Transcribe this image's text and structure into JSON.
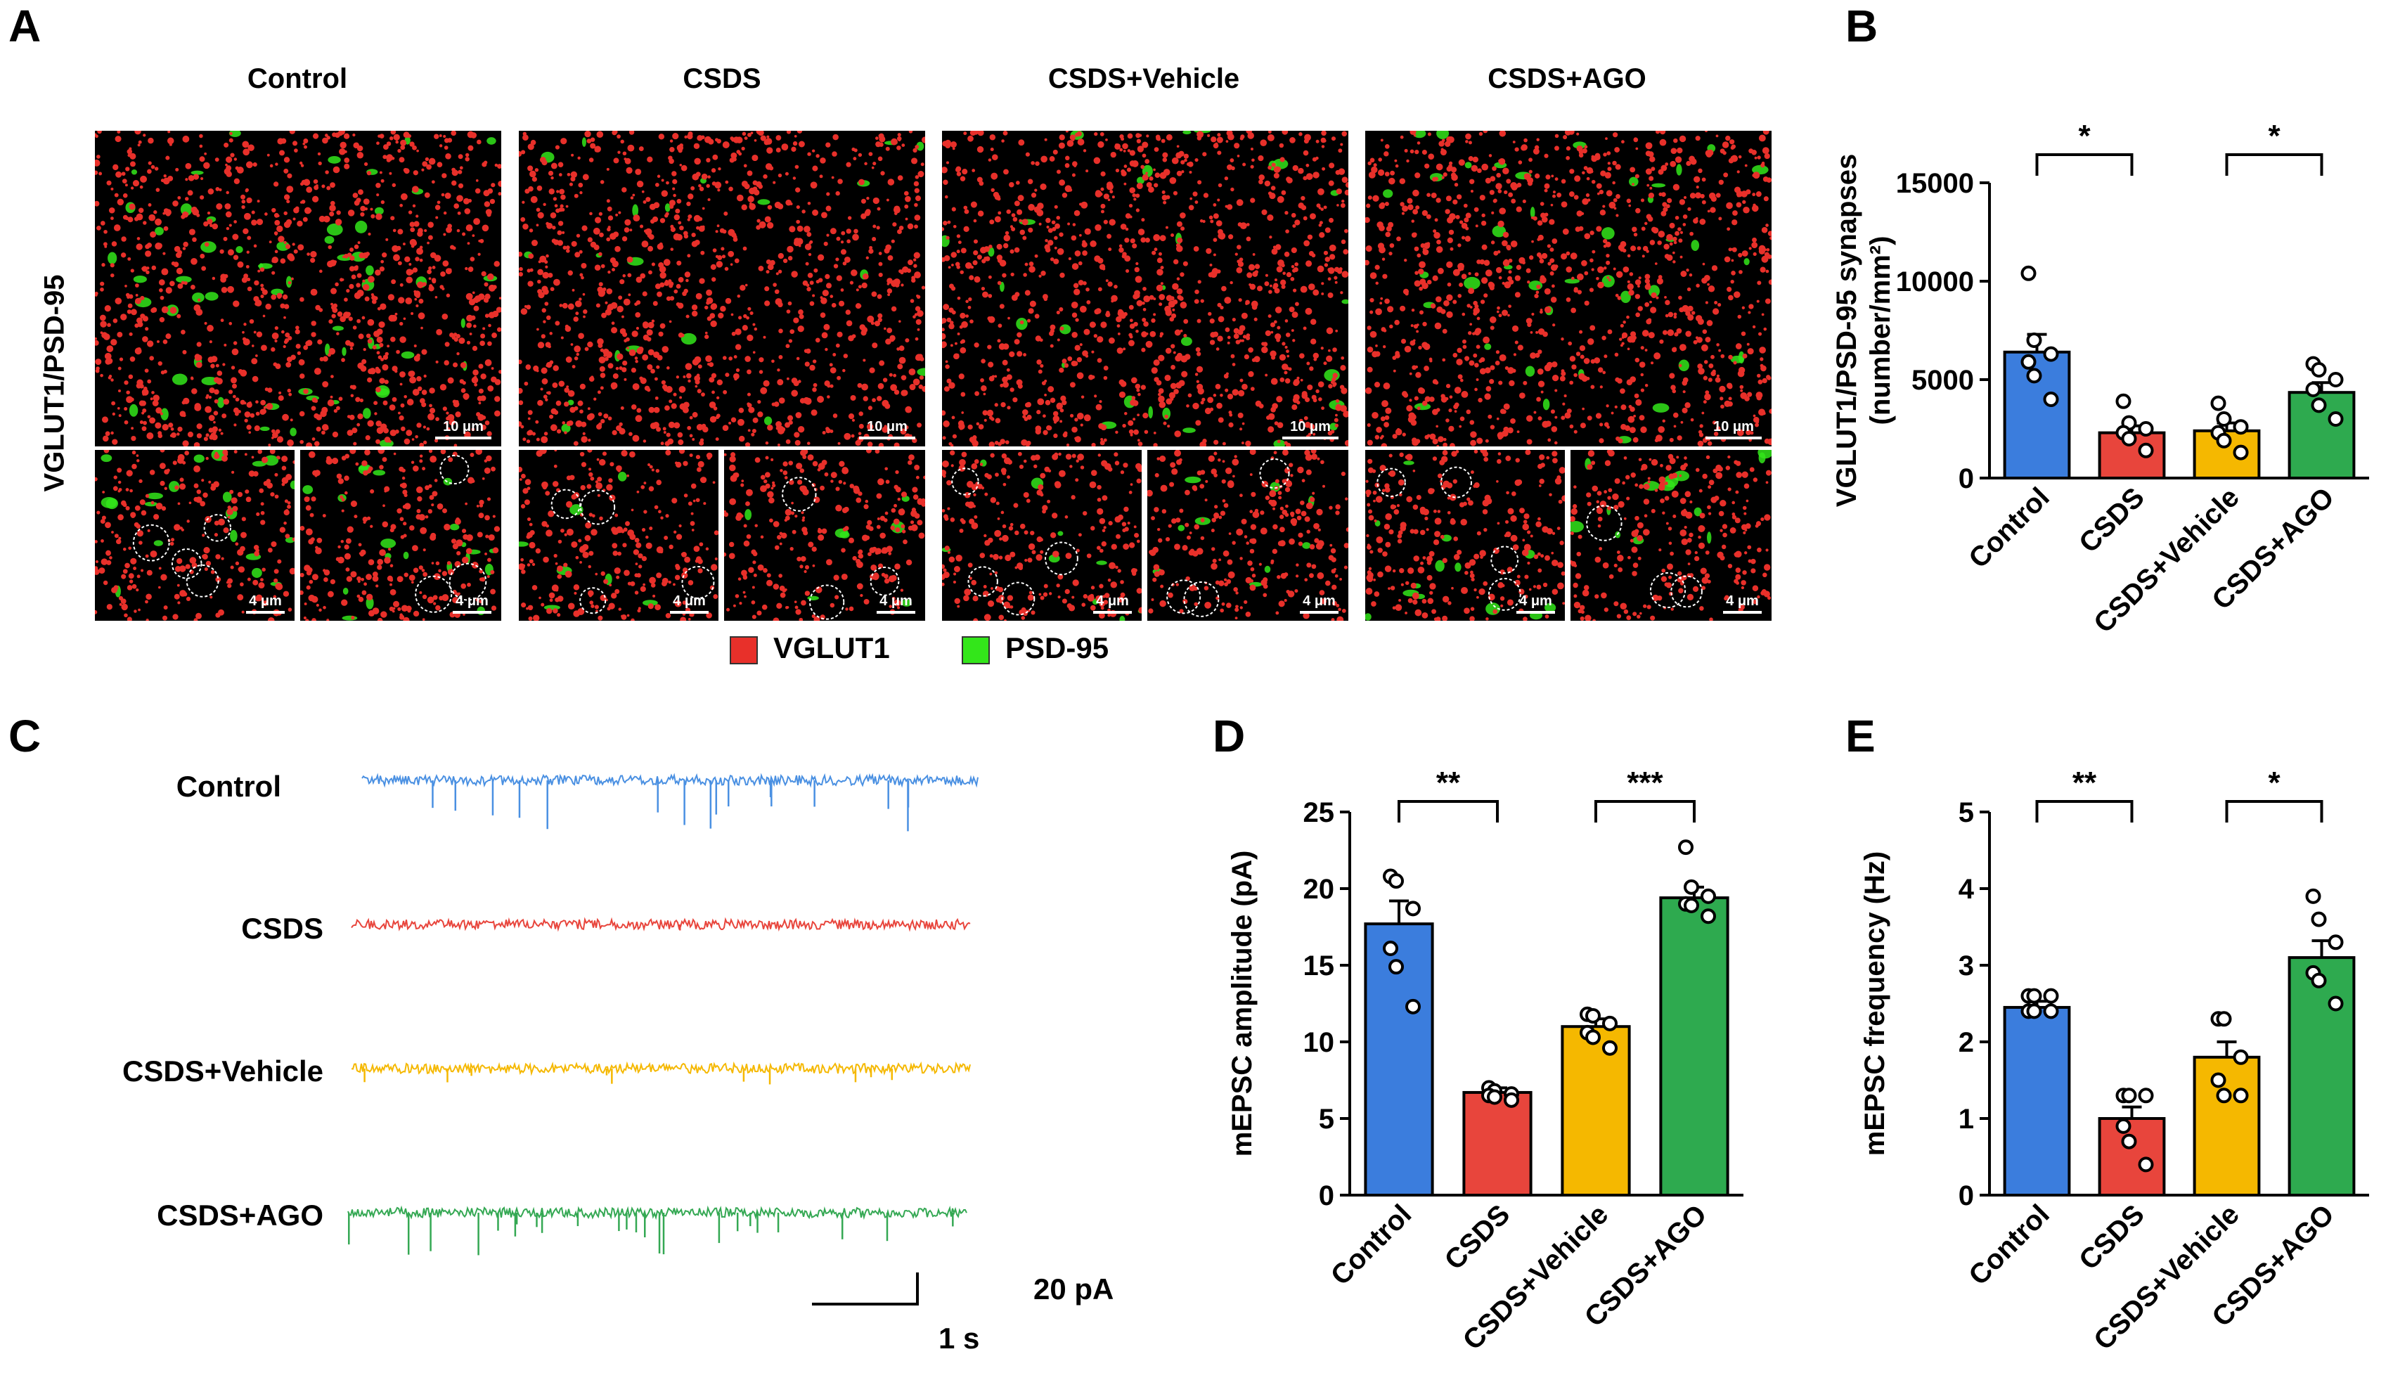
{
  "panels": {
    "A": {
      "letter": "A",
      "ylabel": "VGLUT1/PSD-95",
      "groups": [
        "Control",
        "CSDS",
        "CSDS+Vehicle",
        "CSDS+AGO"
      ],
      "scale_main": "10 μm",
      "scale_inset": "4 μm",
      "legend": [
        {
          "label": "VGLUT1",
          "color": "#e8302a"
        },
        {
          "label": "PSD-95",
          "color": "#33e61a"
        }
      ]
    },
    "B": {
      "letter": "B"
    },
    "C": {
      "letter": "C",
      "traces": [
        {
          "label": "Control",
          "color": "#4a90e2"
        },
        {
          "label": "CSDS",
          "color": "#e8453c"
        },
        {
          "label": "CSDS+Vehicle",
          "color": "#f5b800"
        },
        {
          "label": "CSDS+AGO",
          "color": "#34a853"
        }
      ],
      "scale_y": "20 pA",
      "scale_x": "1 s"
    },
    "D": {
      "letter": "D"
    },
    "E": {
      "letter": "E"
    }
  },
  "chart_data": [
    {
      "id": "B",
      "type": "bar",
      "categories": [
        "Control",
        "CSDS",
        "CSDS+Vehicle",
        "CSDS+AGO"
      ],
      "values": [
        6400,
        2300,
        2400,
        4350
      ],
      "sem": [
        900,
        350,
        400,
        500
      ],
      "points": [
        [
          10400,
          7000,
          6300,
          5900,
          5200,
          4000
        ],
        [
          3900,
          2800,
          2500,
          2300,
          2000,
          1400
        ],
        [
          3800,
          3000,
          2600,
          2300,
          1900,
          1300
        ],
        [
          5800,
          5500,
          5000,
          4500,
          3700,
          3000
        ]
      ],
      "ylabel": "VGLUT1/PSD-95 synapses (number/mm²)",
      "ylabel_lines": [
        "VGLUT1/PSD-95 synapses",
        "(number/mm²)"
      ],
      "ylim": [
        0,
        15000
      ],
      "yticks": [
        0,
        5000,
        10000,
        15000
      ],
      "colors": [
        "#3b7ddd",
        "#e8453c",
        "#f5b800",
        "#2eaa4f"
      ],
      "significance": [
        {
          "from": 0,
          "to": 1,
          "label": "*"
        },
        {
          "from": 2,
          "to": 3,
          "label": "*"
        }
      ]
    },
    {
      "id": "D",
      "type": "bar",
      "categories": [
        "Control",
        "CSDS",
        "CSDS+Vehicle",
        "CSDS+AGO"
      ],
      "values": [
        17.7,
        6.7,
        11.0,
        19.4
      ],
      "sem": [
        1.5,
        0.3,
        0.5,
        0.7
      ],
      "points": [
        [
          20.8,
          20.5,
          18.7,
          16.1,
          14.9,
          12.3
        ],
        [
          7.0,
          6.8,
          6.6,
          6.5,
          6.4,
          6.2
        ],
        [
          11.8,
          11.7,
          11.2,
          10.6,
          10.3,
          9.6
        ],
        [
          22.7,
          20.1,
          19.5,
          19.0,
          18.9,
          18.2
        ]
      ],
      "ylabel": "mEPSC amplitude (pA)",
      "ylim": [
        0,
        25
      ],
      "yticks": [
        0,
        5,
        10,
        15,
        20,
        25
      ],
      "colors": [
        "#3b7ddd",
        "#e8453c",
        "#f5b800",
        "#2eaa4f"
      ],
      "significance": [
        {
          "from": 0,
          "to": 1,
          "label": "**"
        },
        {
          "from": 2,
          "to": 3,
          "label": "***"
        }
      ]
    },
    {
      "id": "E",
      "type": "bar",
      "categories": [
        "Control",
        "CSDS",
        "CSDS+Vehicle",
        "CSDS+AGO"
      ],
      "values": [
        2.45,
        1.0,
        1.8,
        3.1
      ],
      "sem": [
        0.08,
        0.15,
        0.2,
        0.22
      ],
      "points": [
        [
          2.6,
          2.6,
          2.6,
          2.4,
          2.4,
          2.4
        ],
        [
          1.3,
          1.3,
          1.3,
          0.9,
          0.7,
          0.4
        ],
        [
          2.3,
          2.3,
          1.8,
          1.5,
          1.3,
          1.3
        ],
        [
          3.9,
          3.6,
          3.3,
          2.9,
          2.8,
          2.5
        ]
      ],
      "ylabel": "mEPSC frequency (Hz)",
      "ylim": [
        0,
        5
      ],
      "yticks": [
        0,
        1,
        2,
        3,
        4,
        5
      ],
      "colors": [
        "#3b7ddd",
        "#e8453c",
        "#f5b800",
        "#2eaa4f"
      ],
      "significance": [
        {
          "from": 0,
          "to": 1,
          "label": "**"
        },
        {
          "from": 2,
          "to": 3,
          "label": "*"
        }
      ]
    }
  ]
}
